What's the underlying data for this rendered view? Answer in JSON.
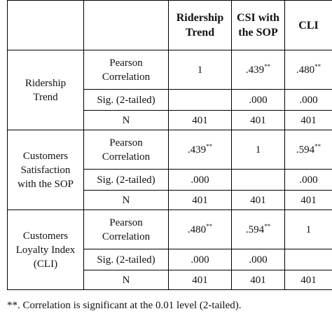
{
  "table": {
    "columns": [
      "",
      "",
      "Ridership Trend",
      "CSI with the SOP",
      "CLI"
    ],
    "column_lines": [
      [],
      [],
      [
        "Ridership",
        "Trend"
      ],
      [
        "CSI with",
        "the SOP"
      ],
      [
        "CLI"
      ]
    ],
    "stat_labels": {
      "pearson_lines": [
        "Pearson",
        "Correlation"
      ],
      "sig": "Sig. (2-tailed)",
      "n": "N"
    },
    "groups": [
      {
        "label_lines": [
          "Ridership",
          "Trend"
        ],
        "pearson": [
          {
            "v": "1",
            "sig": ""
          },
          {
            "v": ".439",
            "sig": "**"
          },
          {
            "v": ".480",
            "sig": "**"
          }
        ],
        "sig": [
          "",
          ".000",
          ".000"
        ],
        "n": [
          "401",
          "401",
          "401"
        ]
      },
      {
        "label_lines": [
          "Customers",
          "Satisfaction",
          "with the SOP"
        ],
        "pearson": [
          {
            "v": ".439",
            "sig": "**"
          },
          {
            "v": "1",
            "sig": ""
          },
          {
            "v": ".594",
            "sig": "**"
          }
        ],
        "sig": [
          ".000",
          "",
          ".000"
        ],
        "n": [
          "401",
          "401",
          "401"
        ]
      },
      {
        "label_lines": [
          "Customers",
          "Loyalty Index",
          "(CLI)"
        ],
        "pearson": [
          {
            "v": ".480",
            "sig": "**"
          },
          {
            "v": ".594",
            "sig": "**"
          },
          {
            "v": "1",
            "sig": ""
          }
        ],
        "sig": [
          ".000",
          ".000",
          ""
        ],
        "n": [
          "401",
          "401",
          "401"
        ]
      }
    ]
  },
  "footnote": "**. Correlation is significant at the 0.01 level (2-tailed)."
}
